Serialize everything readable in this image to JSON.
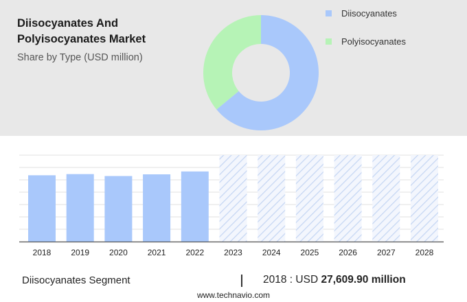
{
  "header": {
    "title": "Diisocyanates And Polyisocyanates Market",
    "subtitle": "Share by Type (USD million)"
  },
  "legend": [
    {
      "label": "Diisocyanates",
      "color": "#a9c8fb"
    },
    {
      "label": "Polyisocyanates",
      "color": "#b6f3b6"
    }
  ],
  "chart_data": [
    {
      "type": "pie",
      "style": "donut",
      "title": "Share by Type (USD million)",
      "categories": [
        "Diisocyanates",
        "Polyisocyanates"
      ],
      "values": [
        64,
        36
      ],
      "colors": [
        "#a9c8fb",
        "#b6f3b6"
      ]
    },
    {
      "type": "bar",
      "categories": [
        "2018",
        "2019",
        "2020",
        "2021",
        "2022",
        "2023",
        "2024",
        "2025",
        "2026",
        "2027",
        "2028"
      ],
      "values": [
        27609.9,
        28100,
        27300,
        28000,
        29200,
        null,
        null,
        null,
        null,
        null,
        null
      ],
      "forecast_categories": [
        "2023",
        "2024",
        "2025",
        "2026",
        "2027",
        "2028"
      ],
      "bar_color": "#a9c8fb",
      "ylim": [
        0,
        36000
      ],
      "grid": true,
      "xlabel": "",
      "ylabel": ""
    }
  ],
  "footer": {
    "segment_label": "Diisocyanates Segment",
    "year": "2018",
    "separator": ":",
    "currency": "USD",
    "amount": "27,609.90 million",
    "source": "www.technavio.com"
  }
}
